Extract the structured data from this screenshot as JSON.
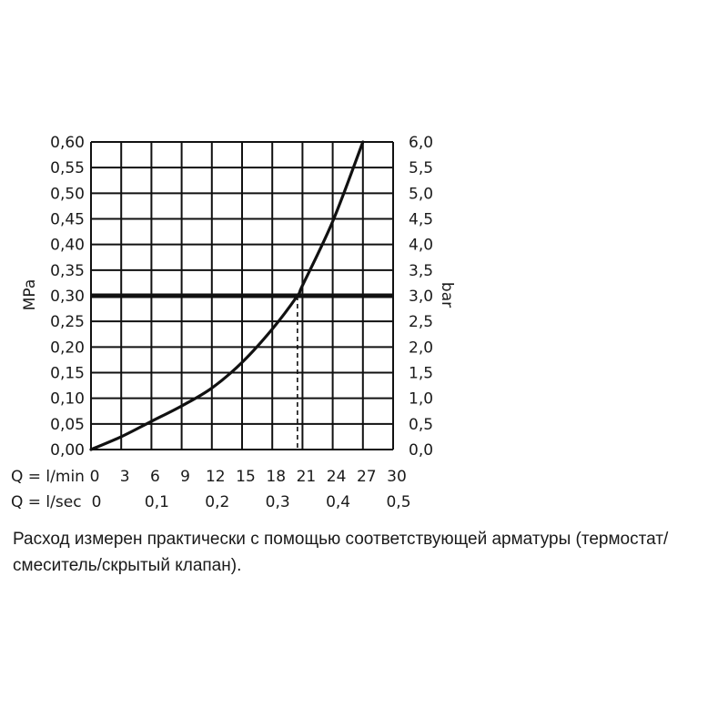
{
  "chart_data": {
    "type": "line",
    "left_axis": {
      "label": "MPa",
      "ticks": [
        "0,00",
        "0,05",
        "0,10",
        "0,15",
        "0,20",
        "0,25",
        "0,30",
        "0,35",
        "0,40",
        "0,45",
        "0,50",
        "0,55",
        "0,60"
      ],
      "range": [
        0,
        0.6
      ]
    },
    "right_axis": {
      "label": "bar",
      "ticks": [
        "0,0",
        "0,5",
        "1,0",
        "1,5",
        "2,0",
        "2,5",
        "3,0",
        "3,5",
        "4,0",
        "4,5",
        "5,0",
        "5,5",
        "6,0"
      ],
      "range": [
        0,
        6
      ]
    },
    "x_axis_lmin": {
      "label": "Q = l/min",
      "ticks": [
        "0",
        "3",
        "6",
        "9",
        "12",
        "15",
        "18",
        "21",
        "24",
        "27",
        "30"
      ],
      "range": [
        0,
        30
      ]
    },
    "x_axis_lsec": {
      "label": "Q = l/sec",
      "ticks": [
        "0",
        "0,1",
        "0,2",
        "0,3",
        "0,4",
        "0,5"
      ],
      "range": [
        0,
        0.5
      ]
    },
    "grid": true,
    "series": [
      {
        "x": [
          0,
          3,
          6,
          9,
          12,
          15,
          18,
          20.5,
          21,
          24,
          27
        ],
        "y": [
          0,
          0.025,
          0.055,
          0.085,
          0.12,
          0.17,
          0.235,
          0.3,
          0.32,
          0.445,
          0.6
        ]
      }
    ],
    "reference_line": {
      "y": 0.3
    },
    "reference_drop": {
      "x": 20.5,
      "y": 0.3
    }
  },
  "note": "Расход измерен практически с помощью соответствующей арматуры (термостат/смеситель/скрытый клапан)."
}
